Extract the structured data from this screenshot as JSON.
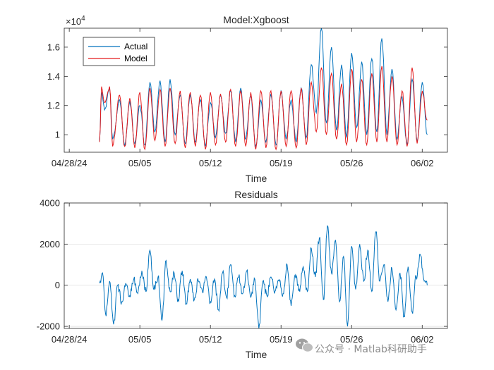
{
  "watermark": {
    "text": "公众号 · Matlab科研助手",
    "icon": "wechat-icon"
  },
  "colors": {
    "actual": "#0072BD",
    "model": "#E31A1C",
    "residual": "#0072BD",
    "axis": "#262626",
    "grid": "#e0e0e0"
  },
  "chart_data": [
    {
      "type": "line",
      "title": "Model:Xgboost",
      "xlabel": "Time",
      "ylabel": "",
      "exponent_label": "×10",
      "exponent_power": "4",
      "x_start": "2024-05-01",
      "x_end": "2024-06-01",
      "xlim": [
        -3.5,
        34.5
      ],
      "ylim": [
        0.88,
        1.73
      ],
      "xticks": [
        -3,
        4,
        11,
        18,
        25,
        32
      ],
      "xtick_labels": [
        "04/28/24",
        "05/05",
        "05/12",
        "05/19",
        "05/26",
        "06/02"
      ],
      "yticks": [
        1.0,
        1.2,
        1.4,
        1.6
      ],
      "ytick_labels": [
        "1",
        "1.2",
        "1.4",
        "1.6"
      ],
      "legend": {
        "location": "top-left",
        "entries": [
          "Actual",
          "Model"
        ]
      },
      "series": [
        {
          "name": "Actual",
          "x": [
            0,
            0.2,
            0.5,
            1.0,
            1.3,
            2.0,
            2.5,
            3.0,
            3.5,
            4.0,
            4.5,
            5.0,
            5.5,
            6.0,
            6.5,
            7.0,
            7.5,
            8.0,
            8.5,
            9.0,
            9.5,
            10.0,
            10.5,
            11.0,
            11.5,
            12.0,
            12.5,
            13.0,
            13.5,
            14.0,
            14.5,
            15.0,
            15.5,
            16.0,
            16.5,
            17.0,
            17.5,
            18.0,
            18.5,
            19.0,
            19.5,
            20.0,
            20.5,
            21.0,
            21.5,
            22.0,
            22.5,
            23.0,
            23.5,
            24.0,
            24.5,
            25.0,
            25.5,
            26.0,
            26.5,
            27.0,
            27.5,
            28.0,
            28.5,
            29.0,
            29.5,
            30.0,
            30.5,
            31.0,
            31.5,
            32.0,
            32.5
          ],
          "values": [
            0.95,
            1.29,
            1.17,
            1.32,
            0.97,
            1.24,
            0.92,
            1.23,
            0.94,
            1.2,
            0.93,
            1.36,
            1.02,
            1.37,
            0.95,
            1.38,
            1.0,
            1.27,
            0.94,
            1.28,
            0.95,
            1.24,
            0.92,
            1.22,
            0.98,
            1.27,
            1.01,
            1.3,
            0.95,
            1.32,
            0.97,
            1.26,
            0.92,
            1.24,
            0.95,
            1.28,
            0.93,
            1.3,
            0.97,
            1.24,
            0.95,
            1.32,
            0.98,
            1.48,
            1.15,
            1.73,
            1.08,
            1.6,
            1.03,
            1.48,
            0.98,
            1.56,
            1.05,
            1.5,
            1.0,
            1.52,
            1.02,
            1.66,
            1.0,
            1.45,
            0.97,
            1.26,
            0.93,
            1.38,
            0.95,
            1.36,
            1.0
          ]
        },
        {
          "name": "Model",
          "x": [
            0,
            0.2,
            0.5,
            1.0,
            1.3,
            2.0,
            2.5,
            3.0,
            3.5,
            4.0,
            4.5,
            5.0,
            5.5,
            6.0,
            6.5,
            7.0,
            7.5,
            8.0,
            8.5,
            9.0,
            9.5,
            10.0,
            10.5,
            11.0,
            11.5,
            12.0,
            12.5,
            13.0,
            13.5,
            14.0,
            14.5,
            15.0,
            15.5,
            16.0,
            16.5,
            17.0,
            17.5,
            18.0,
            18.5,
            19.0,
            19.5,
            20.0,
            20.5,
            21.0,
            21.5,
            22.0,
            22.5,
            23.0,
            23.5,
            24.0,
            24.5,
            25.0,
            25.5,
            26.0,
            26.5,
            27.0,
            27.5,
            28.0,
            28.5,
            29.0,
            29.5,
            30.0,
            30.5,
            31.0,
            31.5,
            32.0,
            32.5
          ],
          "values": [
            0.95,
            1.33,
            1.22,
            1.33,
            0.92,
            1.27,
            0.92,
            1.25,
            0.91,
            1.29,
            0.9,
            1.32,
            0.96,
            1.31,
            0.92,
            1.32,
            0.94,
            1.3,
            0.91,
            1.29,
            0.92,
            1.27,
            0.9,
            1.29,
            0.93,
            1.28,
            0.95,
            1.31,
            0.92,
            1.3,
            0.92,
            1.29,
            0.9,
            1.3,
            0.91,
            1.3,
            0.9,
            1.3,
            0.92,
            1.3,
            0.91,
            1.32,
            0.93,
            1.36,
            1.02,
            1.46,
            1.0,
            1.42,
            0.97,
            1.35,
            0.93,
            1.45,
            0.95,
            1.38,
            0.93,
            1.42,
            0.95,
            1.47,
            0.95,
            1.4,
            0.93,
            1.3,
            0.92,
            1.46,
            0.94,
            1.3,
            1.1
          ]
        }
      ]
    },
    {
      "type": "line",
      "title": "Residuals",
      "xlabel": "Time",
      "ylabel": "",
      "xlim": [
        -3.5,
        34.5
      ],
      "ylim": [
        -2100,
        4000
      ],
      "xticks": [
        -3,
        4,
        11,
        18,
        25,
        32
      ],
      "xtick_labels": [
        "04/28/24",
        "05/05",
        "05/12",
        "05/19",
        "05/26",
        "06/02"
      ],
      "yticks": [
        -2000,
        0,
        2000,
        4000
      ],
      "ytick_labels": [
        "-2000",
        "0",
        "2000",
        "4000"
      ],
      "grid": true,
      "series": [
        {
          "name": "Residuals",
          "x": [
            0,
            0.3,
            0.6,
            1.0,
            1.4,
            1.8,
            2.2,
            2.6,
            3.0,
            3.4,
            3.8,
            4.2,
            4.6,
            5.0,
            5.4,
            5.8,
            6.2,
            6.6,
            7.0,
            7.4,
            7.8,
            8.2,
            8.6,
            9.0,
            9.4,
            9.8,
            10.2,
            10.6,
            11.0,
            11.4,
            11.8,
            12.2,
            12.6,
            13.0,
            13.4,
            13.8,
            14.2,
            14.6,
            15.0,
            15.4,
            15.8,
            16.2,
            16.6,
            17.0,
            17.4,
            17.8,
            18.2,
            18.6,
            19.0,
            19.4,
            19.8,
            20.2,
            20.6,
            21.0,
            21.4,
            21.8,
            22.2,
            22.6,
            23.0,
            23.4,
            23.8,
            24.2,
            24.6,
            25.0,
            25.4,
            25.8,
            26.2,
            26.6,
            27.0,
            27.4,
            27.8,
            28.2,
            28.6,
            29.0,
            29.4,
            29.8,
            30.2,
            30.6,
            31.0,
            31.4,
            31.8,
            32.2,
            32.5
          ],
          "values": [
            100,
            600,
            -1400,
            200,
            -1900,
            0,
            -800,
            100,
            -500,
            300,
            -400,
            700,
            -300,
            1700,
            -200,
            400,
            -1700,
            1200,
            -300,
            600,
            -700,
            700,
            -900,
            300,
            -700,
            200,
            -300,
            400,
            -800,
            300,
            -1200,
            600,
            -600,
            1000,
            -500,
            400,
            -400,
            700,
            -600,
            300,
            -2100,
            200,
            -500,
            400,
            -300,
            200,
            -400,
            1000,
            -1000,
            500,
            -200,
            900,
            -300,
            1800,
            400,
            2300,
            -700,
            2900,
            600,
            2200,
            -800,
            1400,
            -2000,
            1900,
            -200,
            2000,
            200,
            1700,
            -300,
            2600,
            200,
            1000,
            -800,
            800,
            -1200,
            600,
            -1500,
            900,
            -1300,
            400,
            1500,
            200,
            0
          ]
        }
      ]
    }
  ]
}
